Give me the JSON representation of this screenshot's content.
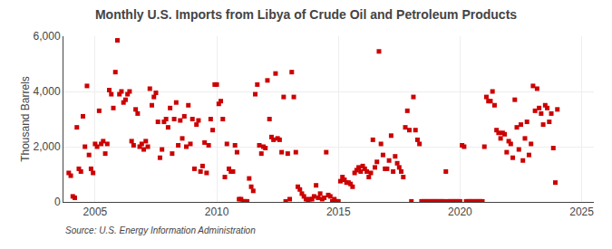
{
  "chart_data": {
    "type": "scatter",
    "title": "Monthly U.S. Imports from Libya of Crude Oil and Petroleum Products",
    "ylabel": "Thousand Barrels",
    "annotations": [
      "Source: U.S. Energy Information Administration"
    ],
    "color": "#cc0000",
    "marker": "square",
    "grid": true,
    "xlim": [
      2003.7,
      2025.5
    ],
    "xticks": [
      2005,
      2010,
      2015,
      2020,
      2025
    ],
    "ylim": [
      0,
      6000
    ],
    "yticks": [
      0,
      {
        "value": 2000,
        "label": "2,000"
      },
      {
        "value": 4000,
        "label": "4,000"
      },
      {
        "value": 6000,
        "label": "6,000"
      }
    ],
    "x": [
      2003.917,
      2004.0,
      2004.083,
      2004.167,
      2004.25,
      2004.333,
      2004.417,
      2004.5,
      2004.583,
      2004.667,
      2004.75,
      2004.833,
      2004.917,
      2005.0,
      2005.083,
      2005.167,
      2005.25,
      2005.333,
      2005.417,
      2005.5,
      2005.583,
      2005.667,
      2005.75,
      2005.833,
      2005.917,
      2006.0,
      2006.083,
      2006.167,
      2006.25,
      2006.333,
      2006.417,
      2006.5,
      2006.583,
      2006.667,
      2006.75,
      2006.833,
      2006.917,
      2007.0,
      2007.083,
      2007.167,
      2007.25,
      2007.333,
      2007.417,
      2007.5,
      2007.583,
      2007.667,
      2007.75,
      2007.833,
      2007.917,
      2008.0,
      2008.083,
      2008.167,
      2008.25,
      2008.333,
      2008.417,
      2008.5,
      2008.583,
      2008.667,
      2008.75,
      2008.833,
      2008.917,
      2009.0,
      2009.083,
      2009.167,
      2009.25,
      2009.333,
      2009.417,
      2009.5,
      2009.583,
      2009.667,
      2009.75,
      2009.833,
      2009.917,
      2010.0,
      2010.083,
      2010.167,
      2010.25,
      2010.333,
      2010.417,
      2010.5,
      2010.583,
      2010.667,
      2010.75,
      2010.833,
      2010.917,
      2011.0,
      2011.083,
      2011.167,
      2011.25,
      2011.333,
      2011.417,
      2011.5,
      2011.583,
      2011.667,
      2011.75,
      2011.833,
      2011.917,
      2012.0,
      2012.083,
      2012.167,
      2012.25,
      2012.333,
      2012.417,
      2012.5,
      2012.583,
      2012.667,
      2012.75,
      2012.833,
      2012.917,
      2013.0,
      2013.083,
      2013.167,
      2013.25,
      2013.333,
      2013.417,
      2013.5,
      2013.583,
      2013.667,
      2013.75,
      2013.833,
      2013.917,
      2014.0,
      2014.083,
      2014.167,
      2014.25,
      2014.333,
      2014.417,
      2014.5,
      2014.583,
      2014.667,
      2014.75,
      2014.833,
      2014.917,
      2015.0,
      2015.083,
      2015.167,
      2015.25,
      2015.333,
      2015.417,
      2015.5,
      2015.583,
      2015.667,
      2015.75,
      2015.833,
      2015.917,
      2016.0,
      2016.083,
      2016.167,
      2016.25,
      2016.333,
      2016.417,
      2016.5,
      2016.583,
      2016.667,
      2016.75,
      2016.833,
      2016.917,
      2017.0,
      2017.083,
      2017.167,
      2017.25,
      2017.333,
      2017.417,
      2017.5,
      2017.583,
      2017.667,
      2017.75,
      2017.833,
      2017.917,
      2018.0,
      2018.083,
      2018.167,
      2018.25,
      2018.333,
      2018.417,
      2018.5,
      2018.583,
      2018.667,
      2018.75,
      2018.833,
      2018.917,
      2019.0,
      2019.083,
      2019.167,
      2019.25,
      2019.333,
      2019.417,
      2019.5,
      2019.583,
      2019.667,
      2019.75,
      2019.833,
      2019.917,
      2020.0,
      2020.083,
      2020.167,
      2020.25,
      2020.333,
      2020.417,
      2020.5,
      2020.583,
      2020.667,
      2020.75,
      2020.833,
      2020.917,
      2021.0,
      2021.083,
      2021.167,
      2021.25,
      2021.333,
      2021.417,
      2021.5,
      2021.583,
      2021.667,
      2021.75,
      2021.833,
      2021.917,
      2022.0,
      2022.083,
      2022.167,
      2022.25,
      2022.333,
      2022.417,
      2022.5,
      2022.583,
      2022.667,
      2022.75,
      2022.833,
      2022.917,
      2023.0,
      2023.083,
      2023.167,
      2023.25,
      2023.333,
      2023.417,
      2023.5,
      2023.583,
      2023.667,
      2023.75,
      2023.833,
      2023.917,
      2024.0
    ],
    "values": [
      1050,
      950,
      200,
      150,
      2700,
      1200,
      1100,
      3100,
      2000,
      4200,
      1700,
      1200,
      1050,
      2100,
      2000,
      3300,
      2100,
      2200,
      1750,
      2100,
      4050,
      3900,
      3400,
      4700,
      5850,
      3900,
      4000,
      3600,
      3700,
      3900,
      4000,
      2200,
      2050,
      3350,
      3200,
      2000,
      2100,
      1900,
      2200,
      2000,
      4100,
      3500,
      3800,
      3950,
      2900,
      1600,
      1900,
      2900,
      3000,
      2700,
      3400,
      1750,
      3000,
      3600,
      2050,
      2950,
      2300,
      3100,
      2000,
      3500,
      2100,
      3000,
      1200,
      2800,
      2950,
      1100,
      1300,
      2150,
      1050,
      2050,
      3000,
      2600,
      4250,
      4250,
      3550,
      3650,
      3000,
      900,
      2100,
      1200,
      1100,
      1100,
      2050,
      1800,
      100,
      100,
      20,
      20,
      20,
      850,
      550,
      400,
      3900,
      4250,
      2050,
      1750,
      2000,
      1950,
      4400,
      3000,
      2350,
      2250,
      4650,
      2300,
      2250,
      1800,
      3800,
      20,
      1750,
      100,
      4700,
      3800,
      1800,
      550,
      450,
      300,
      200,
      100,
      20,
      100,
      100,
      200,
      600,
      150,
      300,
      100,
      150,
      1800,
      250,
      200,
      20,
      100,
      20,
      20,
      750,
      900,
      800,
      700,
      700,
      650,
      550,
      1050,
      1150,
      1250,
      1100,
      1300,
      1200,
      1100,
      900,
      1050,
      2250,
      1250,
      1450,
      5450,
      2100,
      1700,
      1200,
      1200,
      1500,
      2400,
      1100,
      1650,
      1400,
      1250,
      1100,
      900,
      2700,
      3300,
      2600,
      20,
      3800,
      2600,
      2250,
      2100,
      20,
      20,
      20,
      20,
      20,
      20,
      20,
      20,
      20,
      20,
      20,
      20,
      1100,
      20,
      20,
      20,
      20,
      20,
      20,
      20,
      2050,
      2000,
      20,
      20,
      20,
      20,
      20,
      20,
      20,
      20,
      20,
      2000,
      3800,
      3650,
      3650,
      4000,
      3500,
      2600,
      2500,
      2300,
      2500,
      2450,
      1800,
      2200,
      2100,
      1600,
      3700,
      2700,
      1900,
      2800,
      1500,
      2300,
      2900,
      1700,
      2100,
      4200,
      3300,
      4100,
      3400,
      3200,
      2800,
      3500,
      3400,
      2900,
      3200,
      1950,
      700,
      3350
    ]
  }
}
